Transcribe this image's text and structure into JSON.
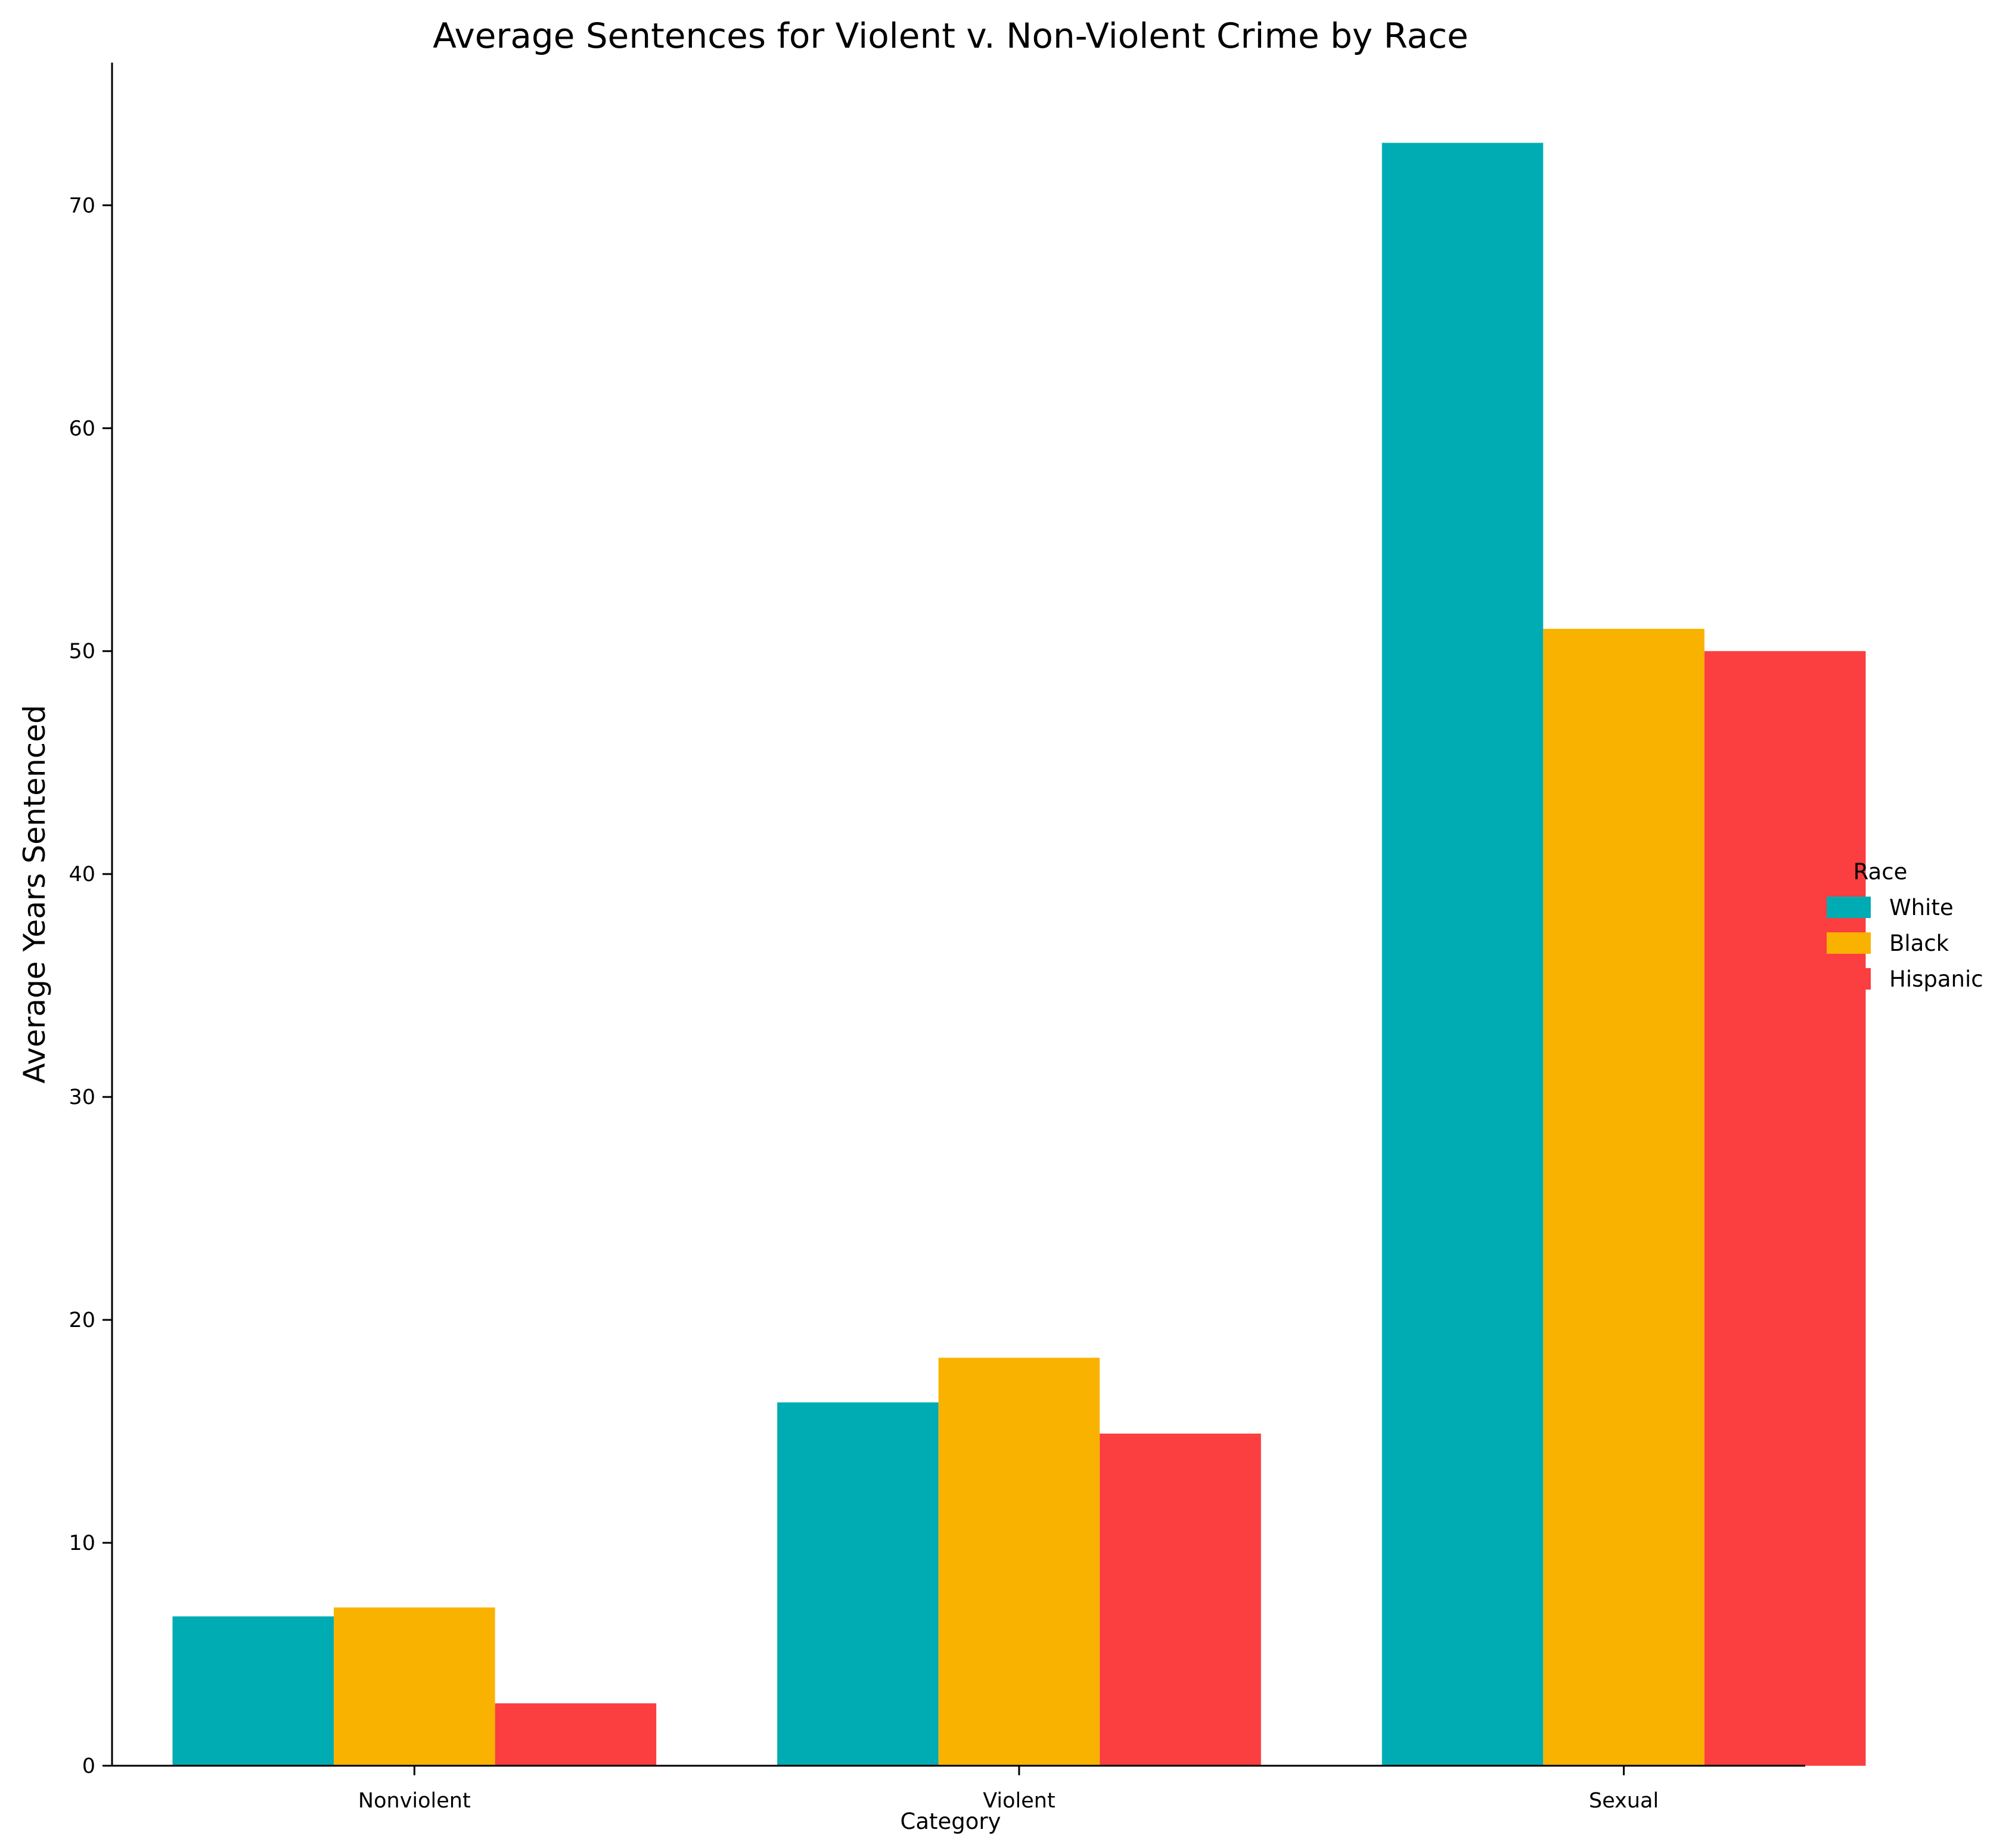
{
  "chart_data": {
    "type": "bar",
    "title": "Average Sentences for Violent v. Non-Violent Crime by Race",
    "xlabel": "Category",
    "ylabel": "Average Years Sentenced",
    "categories": [
      "Nonviolent",
      "Violent",
      "Sexual"
    ],
    "series": [
      {
        "name": "White",
        "color": "#00ACB4",
        "values": [
          6.7,
          16.3,
          72.8
        ]
      },
      {
        "name": "Black",
        "color": "#F9B200",
        "values": [
          7.1,
          18.3,
          51.0
        ]
      },
      {
        "name": "Hispanic",
        "color": "#FB3E3F",
        "values": [
          2.8,
          14.9,
          50.0
        ]
      }
    ],
    "ylim": [
      0,
      76.4
    ],
    "yticks": [
      0,
      10,
      20,
      30,
      40,
      50,
      60,
      70
    ],
    "legend": {
      "title": "Race",
      "placement": "right"
    },
    "grid": false
  }
}
